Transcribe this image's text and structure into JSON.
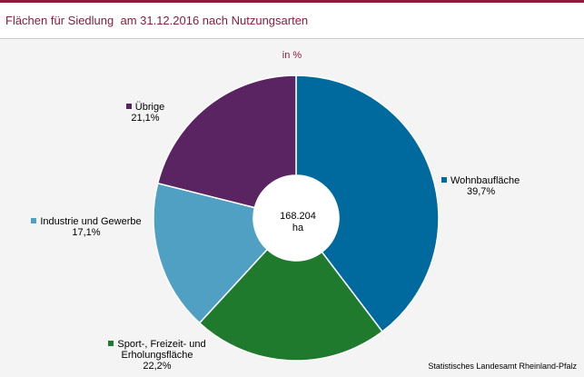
{
  "title": "Flächen für Siedlung  am 31.12.2016 nach Nutzungsarten",
  "unit_label": "in %",
  "source": "Statistisches Landesamt Rheinland-Pfalz",
  "center": {
    "value": "168.204",
    "unit": "ha"
  },
  "chart_data": {
    "type": "pie",
    "title": "Flächen für Siedlung  am 31.12.2016 nach Nutzungsarten",
    "unit": "in %",
    "total": "168.204 ha",
    "slices": [
      {
        "name": "Wohnbaufläche",
        "value": 39.7,
        "label": "39,7%",
        "color": "#00699e"
      },
      {
        "name": "Sport-, Freizeit- und Erholungsfläche",
        "value": 22.2,
        "label": "22,2%",
        "color": "#1f7a2e"
      },
      {
        "name": "Industrie und Gewerbe",
        "value": 17.1,
        "label": "17,1%",
        "color": "#4fa0c2"
      },
      {
        "name": "Übrige",
        "value": 21.1,
        "label": "21,1%",
        "color": "#5a2362"
      }
    ]
  },
  "labels": {
    "wohnbau": {
      "text": "Wohnbaufläche",
      "pct": "39,7%"
    },
    "sport": {
      "text": "Sport-, Freizeit- und\nErholungsfläche",
      "pct": "22,2%"
    },
    "industrie": {
      "text": "Industrie und Gewerbe",
      "pct": "17,1%"
    },
    "uebrige": {
      "text": "Übrige",
      "pct": "21,1%"
    }
  }
}
